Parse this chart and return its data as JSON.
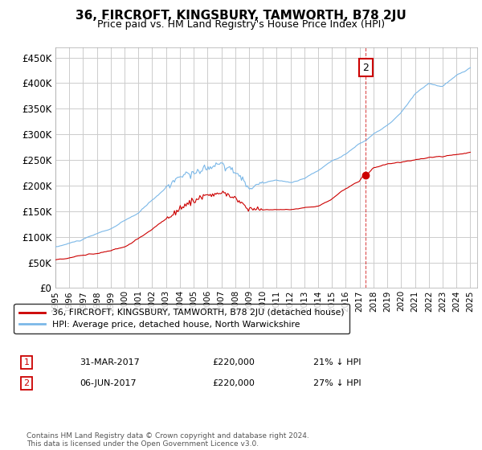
{
  "title": "36, FIRCROFT, KINGSBURY, TAMWORTH, B78 2JU",
  "subtitle": "Price paid vs. HM Land Registry's House Price Index (HPI)",
  "ylim": [
    0,
    470000
  ],
  "yticks": [
    0,
    50000,
    100000,
    150000,
    200000,
    250000,
    300000,
    350000,
    400000,
    450000
  ],
  "ytick_labels": [
    "£0",
    "£50K",
    "£100K",
    "£150K",
    "£200K",
    "£250K",
    "£300K",
    "£350K",
    "£400K",
    "£450K"
  ],
  "hpi_color": "#7BB8E8",
  "price_color": "#CC0000",
  "annotation_box_color": "#CC0000",
  "sale1_date": "31-MAR-2017",
  "sale1_price": 220000,
  "sale1_year": 2017.25,
  "sale2_date": "06-JUN-2017",
  "sale2_price": 220000,
  "sale2_year": 2017.44,
  "sale1_pct": "21%",
  "sale2_pct": "27%",
  "legend_label_price": "36, FIRCROFT, KINGSBURY, TAMWORTH, B78 2JU (detached house)",
  "legend_label_hpi": "HPI: Average price, detached house, North Warwickshire",
  "footer": "Contains HM Land Registry data © Crown copyright and database right 2024.\nThis data is licensed under the Open Government Licence v3.0.",
  "background_color": "#ffffff",
  "grid_color": "#cccccc"
}
